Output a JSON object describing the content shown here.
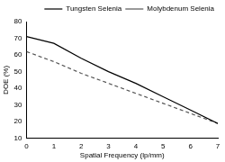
{
  "chart_data": {
    "type": "line",
    "x_label": "Spatial Frequency (lp/mm)",
    "y_label": "DOE (%)",
    "x": [
      0,
      1,
      2,
      3,
      4,
      5,
      6,
      7
    ],
    "series": [
      {
        "name": "Tungsten Selenia",
        "color": "#000000",
        "line_style": "solid",
        "marker": "none",
        "values": [
          71,
          67,
          58,
          50,
          43,
          35,
          27,
          19
        ]
      },
      {
        "name": "Molybdenum Selenia",
        "color": "#555555",
        "line_style": "dashed",
        "marker": "none",
        "values": [
          62,
          56,
          49,
          43,
          37,
          31,
          25,
          19
        ]
      }
    ],
    "xlim": [
      0,
      7
    ],
    "xticks": [
      0,
      1,
      2,
      3,
      4,
      5,
      6,
      7
    ],
    "ylim": [
      10,
      80
    ],
    "yticks": [
      10,
      20,
      30,
      40,
      50,
      60,
      70,
      80
    ],
    "grid": false,
    "legend": "upper right"
  }
}
